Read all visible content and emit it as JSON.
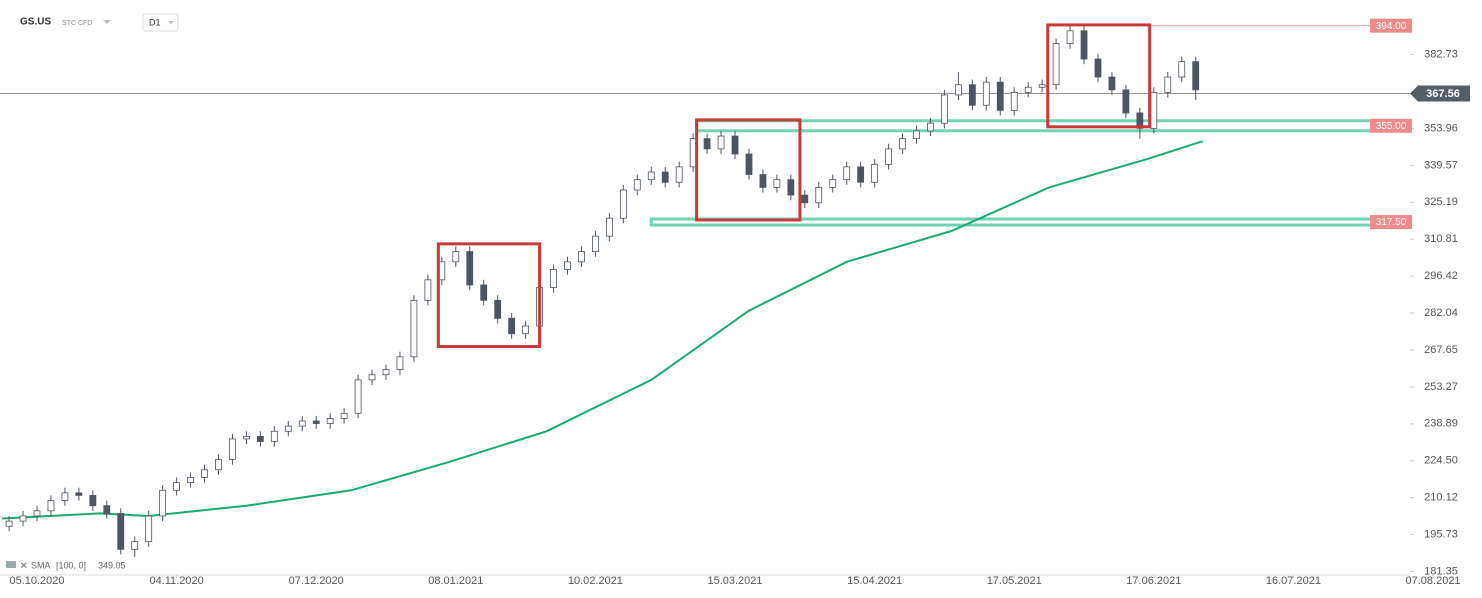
{
  "header": {
    "symbol": "GS.US",
    "instrument": "STC CFD",
    "interval": "D1"
  },
  "indicator": {
    "name": "SMA",
    "params": "[100, 0]",
    "value": 349.05
  },
  "chart_data": {
    "type": "candlestick",
    "xlim": [
      -5.3,
      196.7
    ],
    "ylim": [
      180,
      404
    ],
    "xticks": [
      {
        "value": 0,
        "label": "05.10.2020"
      },
      {
        "value": 20,
        "label": "04.11.2020"
      },
      {
        "value": 40,
        "label": "07.12.2020"
      },
      {
        "value": 60,
        "label": "08.01.2021"
      },
      {
        "value": 80,
        "label": "10.02.2021"
      },
      {
        "value": 100,
        "label": "15.03.2021"
      },
      {
        "value": 120,
        "label": "15.04.2021"
      },
      {
        "value": 140,
        "label": "17.05.2021"
      },
      {
        "value": 160,
        "label": "17.06.2021"
      },
      {
        "value": 180,
        "label": "16.07.2021"
      },
      {
        "value": 200,
        "label": "07.08.2021"
      }
    ],
    "yticks": [
      382.73,
      353.96,
      339.57,
      325.19,
      310.81,
      296.42,
      282.04,
      267.65,
      253.27,
      238.89,
      {
        "value": 224.5,
        "label": "224.50"
      },
      210.12,
      195.73,
      181.35
    ],
    "up_color": "#ffffff",
    "down_color": "#4d5561",
    "outline_color": "#4d5561",
    "x": [
      -4,
      -2,
      0,
      2,
      4,
      6,
      8,
      10,
      12,
      14,
      16,
      18,
      20,
      22,
      24,
      26,
      28,
      30,
      32,
      34,
      36,
      38,
      40,
      42,
      44,
      46,
      48,
      50,
      52,
      54,
      56,
      58,
      60,
      62,
      64,
      66,
      68,
      70,
      72,
      74,
      76,
      78,
      80,
      82,
      84,
      86,
      88,
      90,
      92,
      94,
      96,
      98,
      100,
      102,
      104,
      106,
      108,
      110,
      112,
      114,
      116,
      118,
      120,
      122,
      124,
      126,
      128,
      130,
      132,
      134,
      136,
      138,
      140,
      142,
      144,
      146,
      148,
      150,
      152,
      154,
      156,
      158,
      160,
      162,
      164,
      166
    ],
    "ohlc": [
      [
        199,
        203,
        197,
        201
      ],
      [
        201,
        205,
        199,
        203
      ],
      [
        203,
        207,
        201,
        205
      ],
      [
        205,
        211,
        203,
        209
      ],
      [
        209,
        214,
        207,
        212
      ],
      [
        212,
        214,
        209,
        211
      ],
      [
        211,
        213,
        205,
        207
      ],
      [
        207,
        209,
        202,
        204
      ],
      [
        204,
        206,
        188,
        190
      ],
      [
        190,
        195,
        187,
        193
      ],
      [
        193,
        205,
        191,
        203
      ],
      [
        203,
        215,
        201,
        213
      ],
      [
        213,
        218,
        211,
        216
      ],
      [
        216,
        220,
        214,
        218
      ],
      [
        218,
        223,
        216,
        221
      ],
      [
        221,
        227,
        219,
        225
      ],
      [
        225,
        235,
        223,
        233
      ],
      [
        233,
        236,
        231,
        234
      ],
      [
        234,
        236,
        230,
        232
      ],
      [
        232,
        238,
        230,
        236
      ],
      [
        236,
        240,
        234,
        238
      ],
      [
        238,
        242,
        236,
        240
      ],
      [
        240,
        242,
        237,
        239
      ],
      [
        239,
        243,
        237,
        241
      ],
      [
        241,
        245,
        239,
        243
      ],
      [
        243,
        258,
        241,
        256
      ],
      [
        256,
        260,
        254,
        258
      ],
      [
        258,
        262,
        256,
        260
      ],
      [
        260,
        267,
        258,
        265
      ],
      [
        265,
        289,
        263,
        287
      ],
      [
        287,
        297,
        285,
        295
      ],
      [
        295,
        304,
        293,
        302
      ],
      [
        302,
        308,
        300,
        306
      ],
      [
        306,
        308,
        291,
        293
      ],
      [
        293,
        295,
        285,
        287
      ],
      [
        287,
        289,
        278,
        280
      ],
      [
        280,
        282,
        272,
        274
      ],
      [
        274,
        279,
        272,
        277
      ],
      [
        277,
        294,
        275,
        292
      ],
      [
        292,
        301,
        290,
        299
      ],
      [
        299,
        304,
        297,
        302
      ],
      [
        302,
        308,
        300,
        306
      ],
      [
        306,
        314,
        304,
        312
      ],
      [
        312,
        321,
        310,
        319
      ],
      [
        319,
        332,
        317,
        330
      ],
      [
        330,
        336,
        328,
        334
      ],
      [
        334,
        339,
        332,
        337
      ],
      [
        337,
        339,
        331,
        333
      ],
      [
        333,
        341,
        331,
        339
      ],
      [
        339,
        352,
        337,
        350
      ],
      [
        350,
        352,
        344,
        346
      ],
      [
        346,
        353,
        344,
        351
      ],
      [
        351,
        353,
        342,
        344
      ],
      [
        344,
        346,
        334,
        336
      ],
      [
        336,
        338,
        329,
        331
      ],
      [
        331,
        336,
        329,
        334
      ],
      [
        334,
        336,
        326,
        328
      ],
      [
        328,
        330,
        323,
        325
      ],
      [
        325,
        333,
        323,
        331
      ],
      [
        331,
        336,
        329,
        334
      ],
      [
        334,
        341,
        332,
        339
      ],
      [
        339,
        341,
        331,
        333
      ],
      [
        333,
        342,
        331,
        340
      ],
      [
        340,
        348,
        338,
        346
      ],
      [
        346,
        352,
        344,
        350
      ],
      [
        350,
        355,
        348,
        353
      ],
      [
        353,
        358,
        351,
        356
      ],
      [
        356,
        369,
        354,
        367
      ],
      [
        367,
        376,
        365,
        371
      ],
      [
        371,
        373,
        361,
        363
      ],
      [
        363,
        374,
        361,
        372
      ],
      [
        372,
        374,
        359,
        361
      ],
      [
        361,
        370,
        359,
        368
      ],
      [
        368,
        372,
        366,
        370
      ],
      [
        370,
        373,
        368,
        371
      ],
      [
        371,
        389,
        369,
        387
      ],
      [
        387,
        394,
        385,
        392
      ],
      [
        392,
        394,
        379,
        381
      ],
      [
        381,
        383,
        372,
        374
      ],
      [
        374,
        376,
        367,
        369
      ],
      [
        369,
        371,
        358,
        360
      ],
      [
        360,
        362,
        350,
        354
      ],
      [
        354,
        370,
        352,
        368
      ],
      [
        368,
        376,
        366,
        374
      ],
      [
        374,
        382,
        372,
        380
      ],
      [
        380,
        382,
        365,
        369
      ]
    ],
    "sma": {
      "color": "#1aaa6e",
      "x": [
        -5,
        9,
        16,
        30,
        45,
        59,
        73,
        88,
        102,
        116,
        131,
        145,
        159,
        167
      ],
      "values": [
        202,
        204,
        203,
        207,
        213,
        224,
        236,
        256,
        283,
        302,
        314,
        331,
        342,
        349
      ]
    },
    "current_price": 367.56,
    "levels": [
      {
        "value": 394,
        "label": "394.00",
        "start_x": 159.4,
        "style": "line"
      },
      {
        "value": 355,
        "label": "355.00",
        "start_x": 94.5,
        "style": "zone"
      },
      {
        "value": 317.5,
        "label": "317.50",
        "start_x": 88,
        "style": "zone"
      }
    ],
    "boxes": [
      {
        "x": [
          57.5,
          72
        ],
        "y": [
          269,
          309
        ]
      },
      {
        "x": [
          94.5,
          109.3
        ],
        "y": [
          318.3,
          357.3
        ]
      },
      {
        "x": [
          144.8,
          159.4
        ],
        "y": [
          354.6,
          394.3
        ]
      }
    ]
  }
}
